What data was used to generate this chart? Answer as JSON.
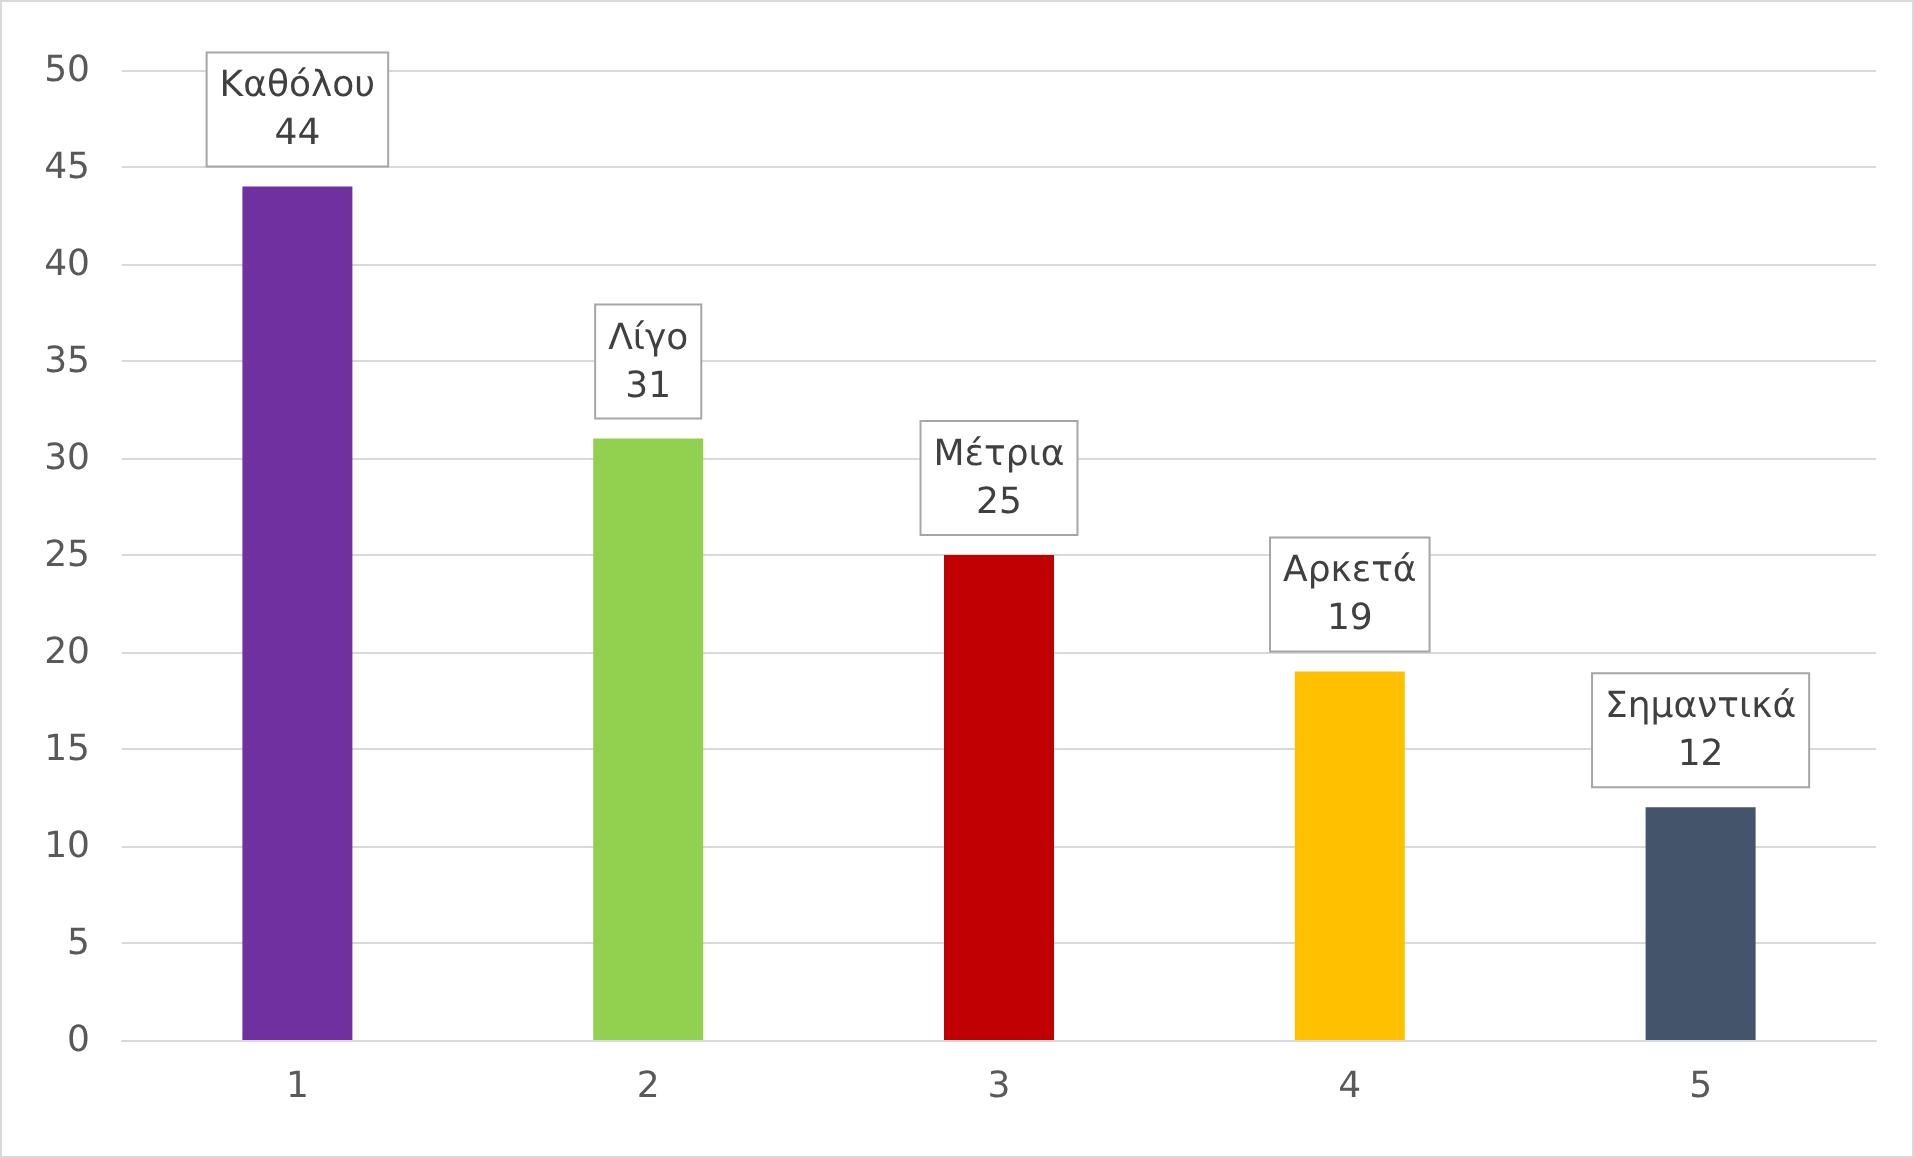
{
  "chart_data": {
    "type": "bar",
    "categories": [
      "1",
      "2",
      "3",
      "4",
      "5"
    ],
    "values": [
      44,
      31,
      25,
      19,
      12
    ],
    "colors": [
      "#7030a0",
      "#92d050",
      "#c00000",
      "#ffc000",
      "#44546a"
    ],
    "ylim": [
      0,
      50
    ],
    "yticks": [
      0,
      5,
      10,
      15,
      20,
      25,
      30,
      35,
      40,
      45,
      50
    ],
    "grid": "y",
    "data_labels": true,
    "annotations": [
      {
        "text": "Καθόλου",
        "x": "1",
        "y": 44
      },
      {
        "text": "Λίγο",
        "x": "2",
        "y": 31
      },
      {
        "text": "Μέτρια",
        "x": "3",
        "y": 25
      },
      {
        "text": "Αρκετά",
        "x": "4",
        "y": 19
      },
      {
        "text": "Σημαντικά",
        "x": "5",
        "y": 12
      }
    ]
  }
}
